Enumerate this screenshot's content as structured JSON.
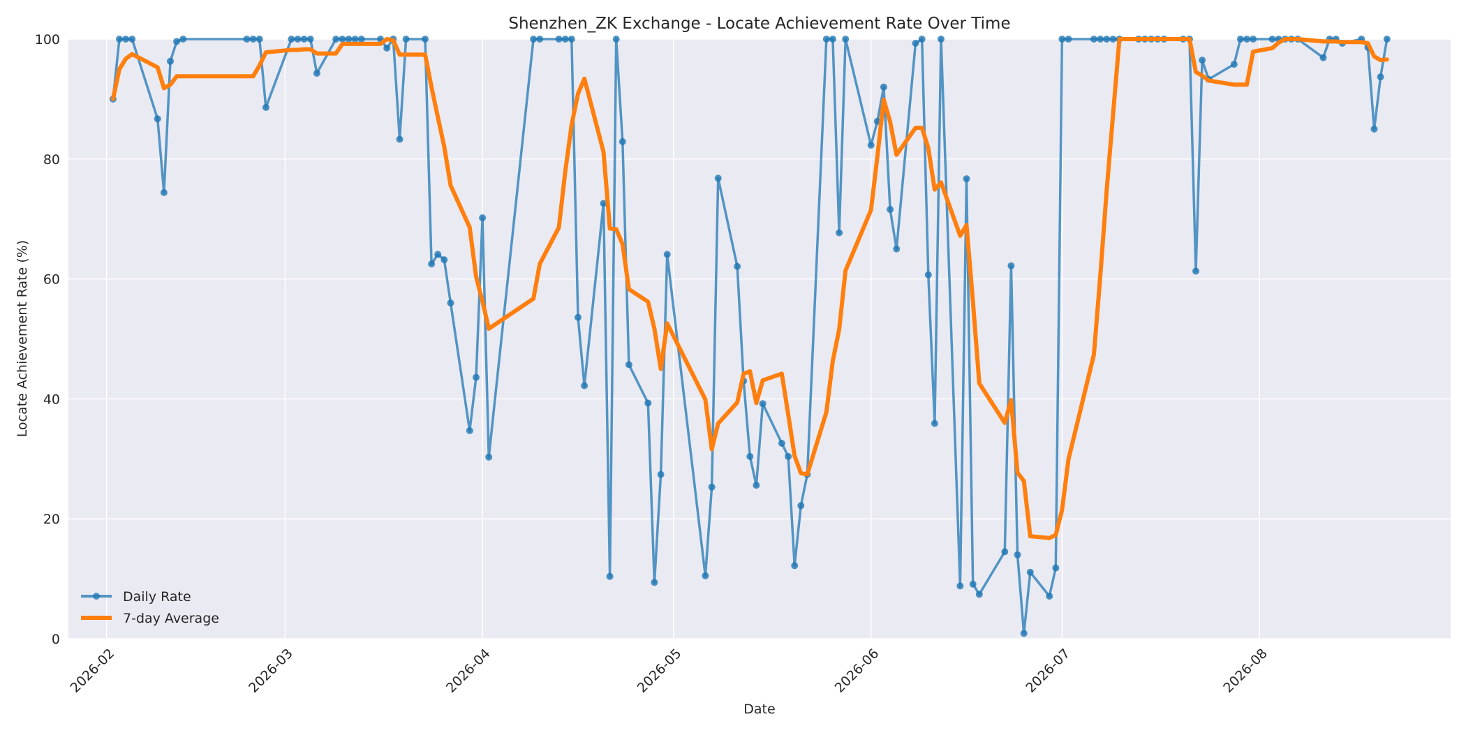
{
  "chart_data": {
    "type": "line",
    "title": "Shenzhen_ZK Exchange - Locate Achievement Rate Over Time",
    "xlabel": "Date",
    "ylabel": "Locate Achievement Rate (%)",
    "ylim": [
      0,
      100
    ],
    "yticks": [
      0,
      20,
      40,
      60,
      80,
      100
    ],
    "xticks": [
      "2026-02",
      "2026-03",
      "2026-04",
      "2026-05",
      "2026-06",
      "2026-07",
      "2026-08"
    ],
    "xlim": [
      "2026-01-26",
      "2026-08-31"
    ],
    "grid": true,
    "legend_position": "lower-left",
    "series": [
      {
        "name": "Daily Rate",
        "color": "#1f77b4",
        "style": "line-with-markers",
        "points": [
          [
            "2026-02-02",
            90
          ],
          [
            "2026-02-03",
            100
          ],
          [
            "2026-02-04",
            100
          ],
          [
            "2026-02-05",
            100
          ],
          [
            "2026-02-09",
            86.7
          ],
          [
            "2026-02-10",
            74.4
          ],
          [
            "2026-02-11",
            96.3
          ],
          [
            "2026-02-12",
            99.6
          ],
          [
            "2026-02-13",
            100
          ],
          [
            "2026-02-23",
            100
          ],
          [
            "2026-02-24",
            100
          ],
          [
            "2026-02-25",
            100
          ],
          [
            "2026-02-26",
            88.6
          ],
          [
            "2026-03-02",
            100
          ],
          [
            "2026-03-03",
            100
          ],
          [
            "2026-03-04",
            100
          ],
          [
            "2026-03-05",
            100
          ],
          [
            "2026-03-06",
            94.3
          ],
          [
            "2026-03-09",
            100
          ],
          [
            "2026-03-10",
            100
          ],
          [
            "2026-03-11",
            100
          ],
          [
            "2026-03-12",
            100
          ],
          [
            "2026-03-13",
            100
          ],
          [
            "2026-03-16",
            100
          ],
          [
            "2026-03-17",
            98.5
          ],
          [
            "2026-03-18",
            100
          ],
          [
            "2026-03-19",
            83.3
          ],
          [
            "2026-03-20",
            100
          ],
          [
            "2026-03-23",
            100
          ],
          [
            "2026-03-24",
            62.5
          ],
          [
            "2026-03-25",
            64.1
          ],
          [
            "2026-03-26",
            63.2
          ],
          [
            "2026-03-27",
            56
          ],
          [
            "2026-03-30",
            34.7
          ],
          [
            "2026-03-31",
            43.6
          ],
          [
            "2026-04-01",
            70.2
          ],
          [
            "2026-04-02",
            30.3
          ],
          [
            "2026-04-09",
            100
          ],
          [
            "2026-04-10",
            100
          ],
          [
            "2026-04-13",
            100
          ],
          [
            "2026-04-14",
            100
          ],
          [
            "2026-04-15",
            100
          ],
          [
            "2026-04-16",
            53.6
          ],
          [
            "2026-04-17",
            42.2
          ],
          [
            "2026-04-20",
            72.6
          ],
          [
            "2026-04-21",
            10.4
          ],
          [
            "2026-04-22",
            100
          ],
          [
            "2026-04-23",
            82.9
          ],
          [
            "2026-04-24",
            45.7
          ],
          [
            "2026-04-27",
            39.3
          ],
          [
            "2026-04-28",
            9.4
          ],
          [
            "2026-04-29",
            27.4
          ],
          [
            "2026-04-30",
            64.1
          ],
          [
            "2026-05-06",
            10.5
          ],
          [
            "2026-05-07",
            25.3
          ],
          [
            "2026-05-08",
            76.8
          ],
          [
            "2026-05-11",
            62.1
          ],
          [
            "2026-05-12",
            43
          ],
          [
            "2026-05-13",
            30.4
          ],
          [
            "2026-05-14",
            25.6
          ],
          [
            "2026-05-15",
            39.2
          ],
          [
            "2026-05-18",
            32.6
          ],
          [
            "2026-05-19",
            30.4
          ],
          [
            "2026-05-20",
            12.2
          ],
          [
            "2026-05-21",
            22.2
          ],
          [
            "2026-05-22",
            27.4
          ],
          [
            "2026-05-25",
            100
          ],
          [
            "2026-05-26",
            100
          ],
          [
            "2026-05-27",
            67.7
          ],
          [
            "2026-05-28",
            100
          ],
          [
            "2026-06-01",
            82.3
          ],
          [
            "2026-06-02",
            86.3
          ],
          [
            "2026-06-03",
            92
          ],
          [
            "2026-06-04",
            71.6
          ],
          [
            "2026-06-05",
            65
          ],
          [
            "2026-06-08",
            99.3
          ],
          [
            "2026-06-09",
            100
          ],
          [
            "2026-06-10",
            60.7
          ],
          [
            "2026-06-11",
            35.9
          ],
          [
            "2026-06-12",
            100
          ],
          [
            "2026-06-15",
            8.8
          ],
          [
            "2026-06-16",
            76.7
          ],
          [
            "2026-06-17",
            9.1
          ],
          [
            "2026-06-18",
            7.4
          ],
          [
            "2026-06-22",
            14.5
          ],
          [
            "2026-06-23",
            62.2
          ],
          [
            "2026-06-24",
            14
          ],
          [
            "2026-06-25",
            0.9
          ],
          [
            "2026-06-26",
            11.1
          ],
          [
            "2026-06-29",
            7.1
          ],
          [
            "2026-06-30",
            11.8
          ],
          [
            "2026-07-01",
            100
          ],
          [
            "2026-07-02",
            100
          ],
          [
            "2026-07-06",
            100
          ],
          [
            "2026-07-07",
            100
          ],
          [
            "2026-07-08",
            100
          ],
          [
            "2026-07-09",
            100
          ],
          [
            "2026-07-10",
            100
          ],
          [
            "2026-07-13",
            100
          ],
          [
            "2026-07-14",
            100
          ],
          [
            "2026-07-15",
            100
          ],
          [
            "2026-07-16",
            100
          ],
          [
            "2026-07-17",
            100
          ],
          [
            "2026-07-20",
            100
          ],
          [
            "2026-07-21",
            100
          ],
          [
            "2026-07-22",
            61.3
          ],
          [
            "2026-07-23",
            96.5
          ],
          [
            "2026-07-24",
            93.3
          ],
          [
            "2026-07-28",
            95.8
          ],
          [
            "2026-07-29",
            100
          ],
          [
            "2026-07-30",
            100
          ],
          [
            "2026-07-31",
            100
          ],
          [
            "2026-08-03",
            100
          ],
          [
            "2026-08-04",
            100
          ],
          [
            "2026-08-05",
            100
          ],
          [
            "2026-08-06",
            100
          ],
          [
            "2026-08-07",
            100
          ],
          [
            "2026-08-11",
            96.9
          ],
          [
            "2026-08-12",
            100
          ],
          [
            "2026-08-13",
            100
          ],
          [
            "2026-08-14",
            99.3
          ],
          [
            "2026-08-17",
            100
          ],
          [
            "2026-08-18",
            98.6
          ],
          [
            "2026-08-19",
            85
          ],
          [
            "2026-08-20",
            93.7
          ],
          [
            "2026-08-21",
            100
          ]
        ]
      },
      {
        "name": "7-day Average",
        "color": "#ff7f0e",
        "style": "line",
        "points": [
          [
            "2026-02-02",
            90
          ],
          [
            "2026-02-03",
            95
          ],
          [
            "2026-02-04",
            96.7
          ],
          [
            "2026-02-05",
            97.5
          ],
          [
            "2026-02-09",
            95.3
          ],
          [
            "2026-02-10",
            91.8
          ],
          [
            "2026-02-11",
            92.4
          ],
          [
            "2026-02-12",
            93.8
          ],
          [
            "2026-02-13",
            93.8
          ],
          [
            "2026-02-23",
            93.8
          ],
          [
            "2026-02-24",
            93.8
          ],
          [
            "2026-02-25",
            95.6
          ],
          [
            "2026-02-26",
            97.8
          ],
          [
            "2026-03-02",
            98.2
          ],
          [
            "2026-03-03",
            98.2
          ],
          [
            "2026-03-04",
            98.3
          ],
          [
            "2026-03-05",
            98.3
          ],
          [
            "2026-03-06",
            97.6
          ],
          [
            "2026-03-09",
            97.6
          ],
          [
            "2026-03-10",
            99.2
          ],
          [
            "2026-03-11",
            99.2
          ],
          [
            "2026-03-12",
            99.2
          ],
          [
            "2026-03-13",
            99.2
          ],
          [
            "2026-03-16",
            99.2
          ],
          [
            "2026-03-17",
            100
          ],
          [
            "2026-03-18",
            99.8
          ],
          [
            "2026-03-19",
            97.4
          ],
          [
            "2026-03-20",
            97.4
          ],
          [
            "2026-03-23",
            97.4
          ],
          [
            "2026-03-24",
            92
          ],
          [
            "2026-03-25",
            87
          ],
          [
            "2026-03-26",
            82.1
          ],
          [
            "2026-03-27",
            75.6
          ],
          [
            "2026-03-30",
            68.6
          ],
          [
            "2026-03-31",
            60.4
          ],
          [
            "2026-04-01",
            56.3
          ],
          [
            "2026-04-02",
            51.7
          ],
          [
            "2026-04-09",
            56.7
          ],
          [
            "2026-04-10",
            62.5
          ],
          [
            "2026-04-13",
            68.6
          ],
          [
            "2026-04-14",
            77.9
          ],
          [
            "2026-04-15",
            85.7
          ],
          [
            "2026-04-16",
            90.9
          ],
          [
            "2026-04-17",
            93.4
          ],
          [
            "2026-04-20",
            81.2
          ],
          [
            "2026-04-21",
            68.4
          ],
          [
            "2026-04-22",
            68.3
          ],
          [
            "2026-04-23",
            65.8
          ],
          [
            "2026-04-24",
            58.3
          ],
          [
            "2026-04-27",
            56.2
          ],
          [
            "2026-04-28",
            51.7
          ],
          [
            "2026-04-29",
            45
          ],
          [
            "2026-04-30",
            52.6
          ],
          [
            "2026-05-06",
            39.9
          ],
          [
            "2026-05-07",
            31.6
          ],
          [
            "2026-05-08",
            35.9
          ],
          [
            "2026-05-11",
            39.4
          ],
          [
            "2026-05-12",
            44.2
          ],
          [
            "2026-05-13",
            44.6
          ],
          [
            "2026-05-14",
            39.3
          ],
          [
            "2026-05-15",
            43.1
          ],
          [
            "2026-05-18",
            44.2
          ],
          [
            "2026-05-19",
            37.4
          ],
          [
            "2026-05-20",
            30.5
          ],
          [
            "2026-05-21",
            27.6
          ],
          [
            "2026-05-22",
            27.4
          ],
          [
            "2026-05-25",
            37.8
          ],
          [
            "2026-05-26",
            46.3
          ],
          [
            "2026-05-27",
            51.6
          ],
          [
            "2026-05-28",
            61.4
          ],
          [
            "2026-06-01",
            71.5
          ],
          [
            "2026-06-02",
            80.4
          ],
          [
            "2026-06-03",
            89.9
          ],
          [
            "2026-06-04",
            86.2
          ],
          [
            "2026-06-05",
            80.7
          ],
          [
            "2026-06-08",
            85.2
          ],
          [
            "2026-06-09",
            85.2
          ],
          [
            "2026-06-10",
            81.8
          ],
          [
            "2026-06-11",
            74.9
          ],
          [
            "2026-06-12",
            76.1
          ],
          [
            "2026-06-15",
            67.2
          ],
          [
            "2026-06-16",
            69
          ],
          [
            "2026-06-17",
            56.2
          ],
          [
            "2026-06-18",
            42.6
          ],
          [
            "2026-06-22",
            36
          ],
          [
            "2026-06-23",
            39.8
          ],
          [
            "2026-06-24",
            27.7
          ],
          [
            "2026-06-25",
            26.3
          ],
          [
            "2026-06-26",
            17.1
          ],
          [
            "2026-06-29",
            16.8
          ],
          [
            "2026-06-30",
            17.3
          ],
          [
            "2026-07-01",
            21.5
          ],
          [
            "2026-07-02",
            29.9
          ],
          [
            "2026-07-06",
            47.4
          ],
          [
            "2026-07-07",
            60.6
          ],
          [
            "2026-07-08",
            74.8
          ],
          [
            "2026-07-09",
            87.4
          ],
          [
            "2026-07-10",
            100
          ],
          [
            "2026-07-13",
            100
          ],
          [
            "2026-07-14",
            100
          ],
          [
            "2026-07-15",
            100
          ],
          [
            "2026-07-16",
            100
          ],
          [
            "2026-07-17",
            100
          ],
          [
            "2026-07-20",
            100
          ],
          [
            "2026-07-21",
            100
          ],
          [
            "2026-07-22",
            94.5
          ],
          [
            "2026-07-23",
            93.9
          ],
          [
            "2026-07-24",
            93.1
          ],
          [
            "2026-07-28",
            92.4
          ],
          [
            "2026-07-29",
            92.4
          ],
          [
            "2026-07-30",
            92.4
          ],
          [
            "2026-07-31",
            97.9
          ],
          [
            "2026-08-03",
            98.5
          ],
          [
            "2026-08-04",
            99.4
          ],
          [
            "2026-08-05",
            100
          ],
          [
            "2026-08-06",
            100
          ],
          [
            "2026-08-07",
            100
          ],
          [
            "2026-08-11",
            99.6
          ],
          [
            "2026-08-12",
            99.6
          ],
          [
            "2026-08-13",
            99.6
          ],
          [
            "2026-08-14",
            99.5
          ],
          [
            "2026-08-17",
            99.5
          ],
          [
            "2026-08-18",
            99.3
          ],
          [
            "2026-08-19",
            97.1
          ],
          [
            "2026-08-20",
            96.5
          ],
          [
            "2026-08-21",
            96.6
          ]
        ]
      }
    ]
  },
  "colors": {
    "plot_background": "#eaeaf2",
    "grid": "#ffffff",
    "daily_rate": "#1f77b4",
    "seven_day_average": "#ff7f0e"
  }
}
